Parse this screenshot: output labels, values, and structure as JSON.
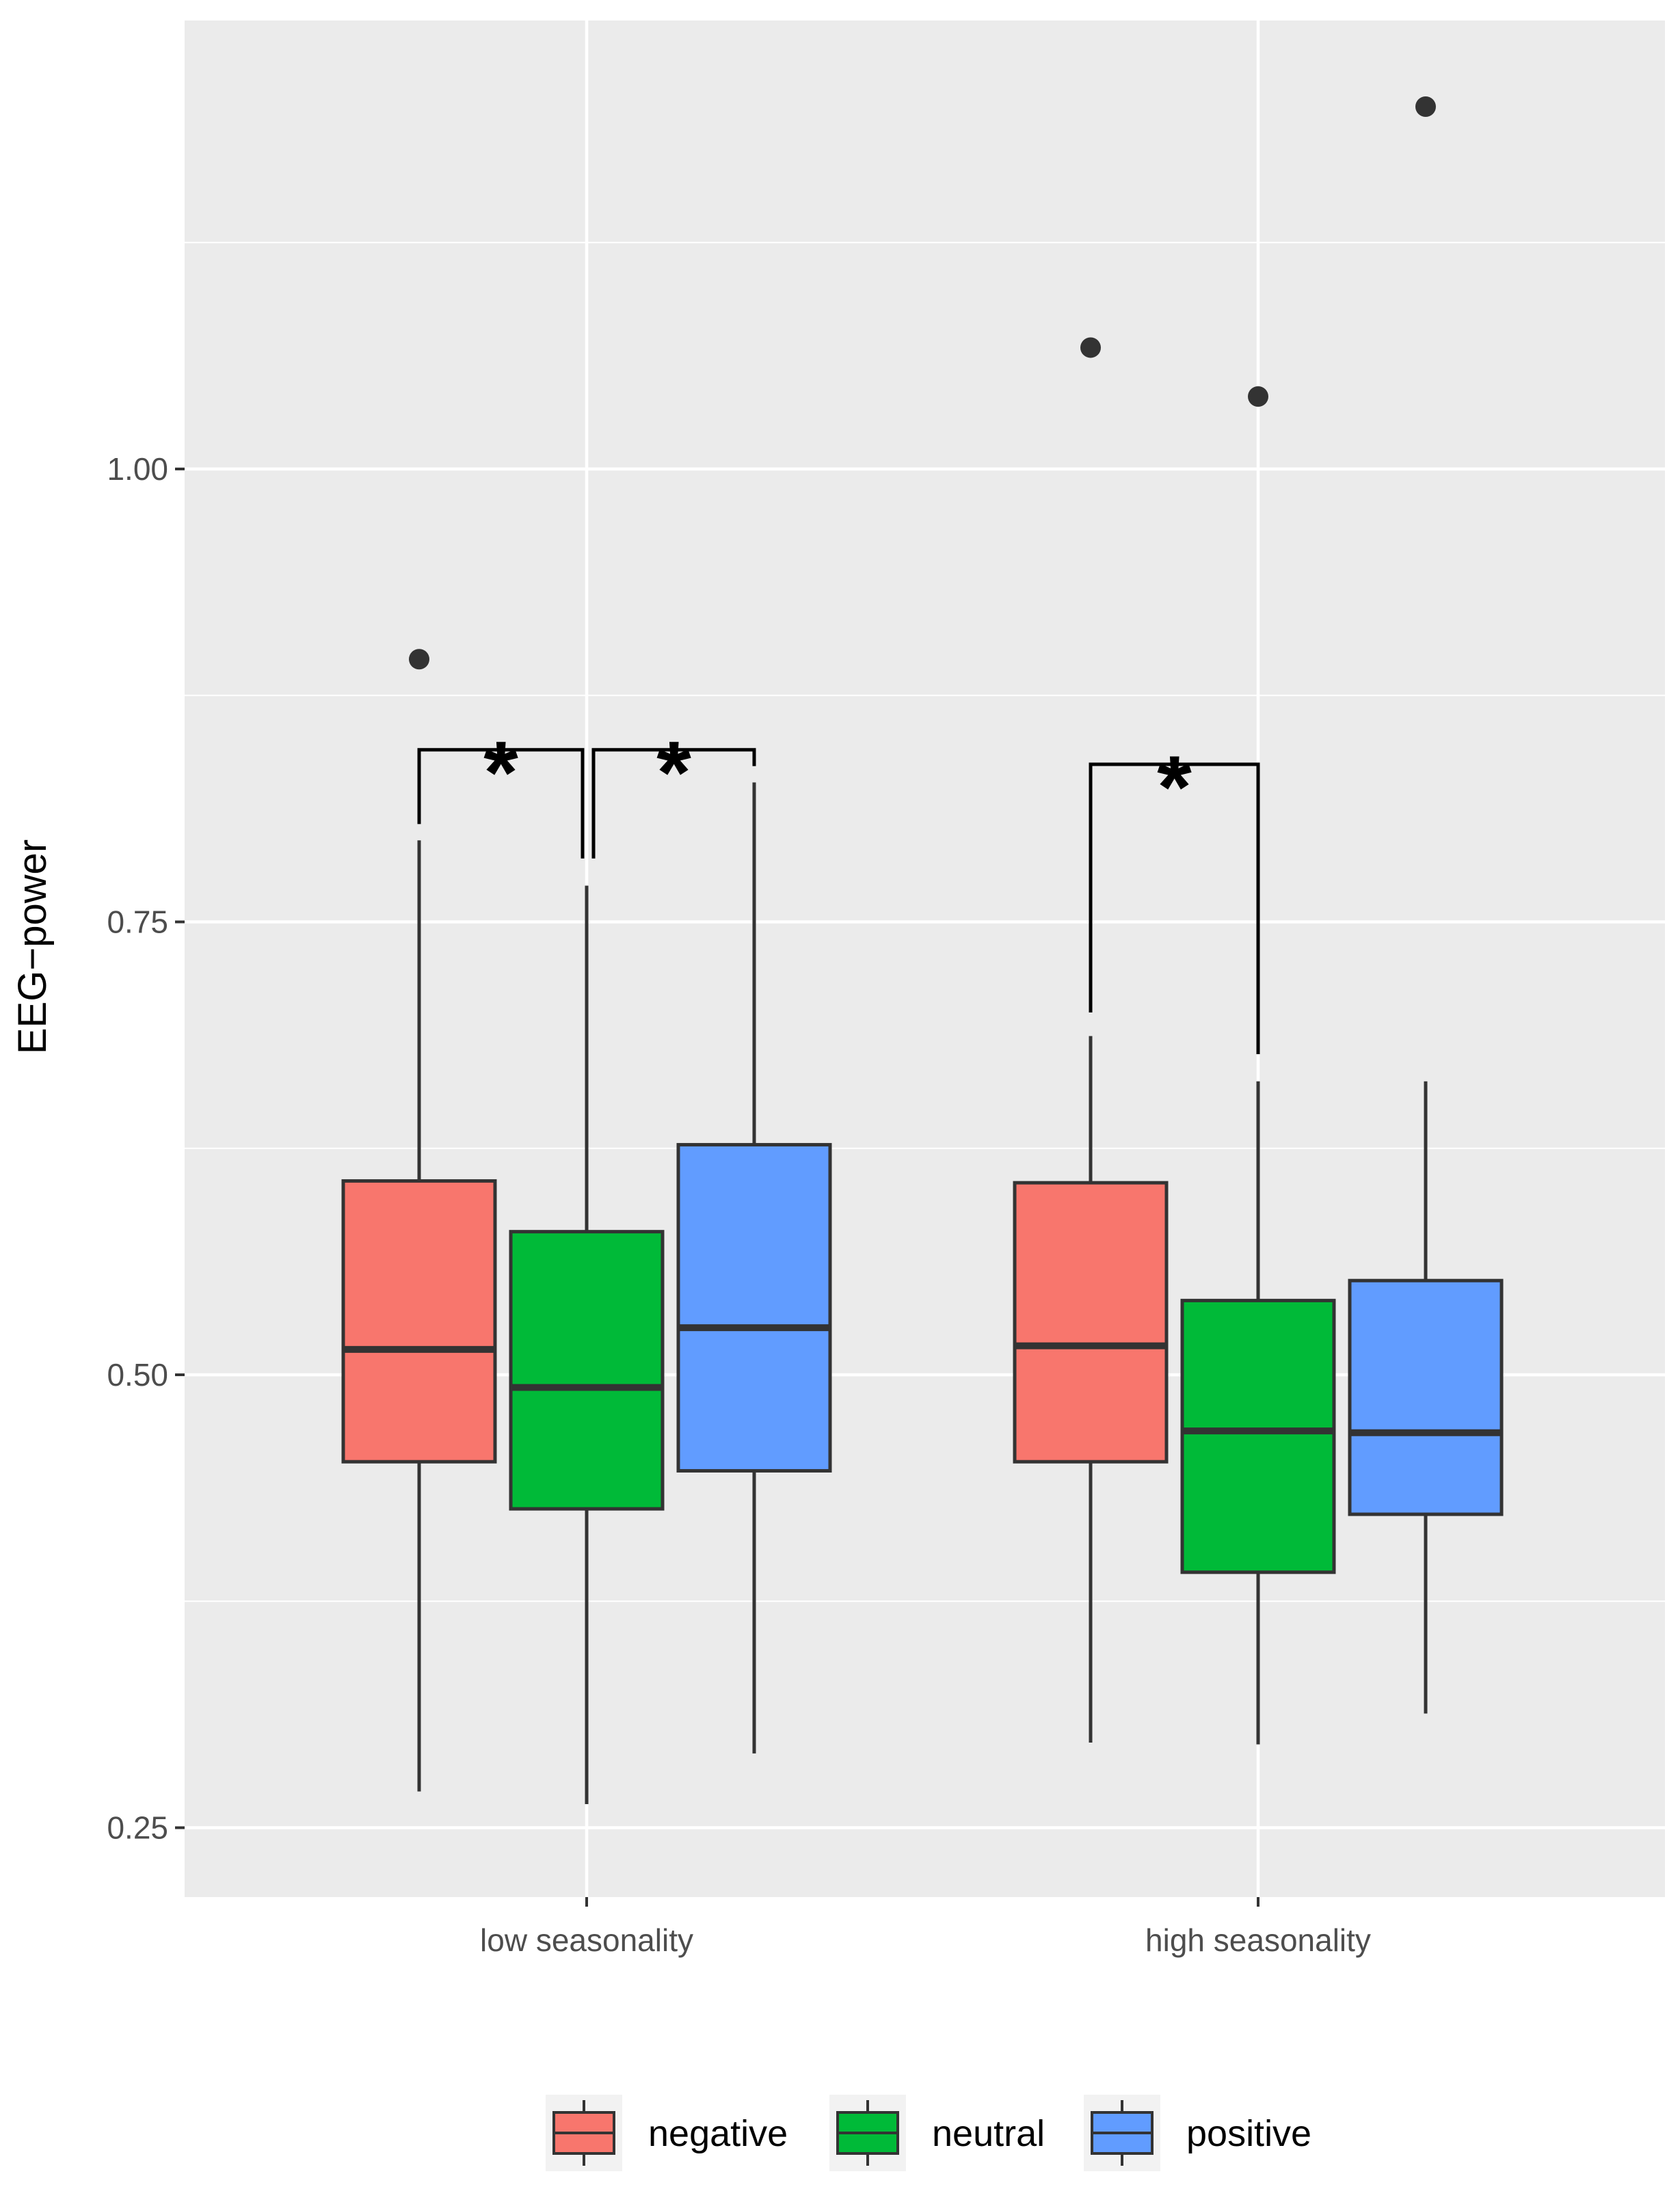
{
  "chart_data": {
    "type": "box",
    "title": "",
    "xlabel": "",
    "ylabel": "EEG−power",
    "ylim": [
      0.215,
      1.26
    ],
    "yticks": [
      0.25,
      0.5,
      0.75,
      1.0
    ],
    "ytick_labels": [
      "0.25",
      "0.50",
      "0.75",
      "1.00"
    ],
    "grid": true,
    "legend_position": "bottom",
    "categories": [
      "low seasonality",
      "high seasonality"
    ],
    "series": [
      {
        "name": "negative",
        "color": "#F8766D",
        "boxes": [
          {
            "category": "low seasonality",
            "whisker_low": 0.27,
            "q1": 0.452,
            "median": 0.514,
            "q3": 0.607,
            "whisker_high": 0.795,
            "outliers": [
              0.895
            ]
          },
          {
            "category": "high seasonality",
            "whisker_low": 0.297,
            "q1": 0.452,
            "median": 0.516,
            "q3": 0.606,
            "whisker_high": 0.687,
            "outliers": [
              1.067
            ]
          }
        ]
      },
      {
        "name": "neutral",
        "color": "#00BA38",
        "boxes": [
          {
            "category": "low seasonality",
            "whisker_low": 0.263,
            "q1": 0.426,
            "median": 0.493,
            "q3": 0.579,
            "whisker_high": 0.77,
            "outliers": []
          },
          {
            "category": "high seasonality",
            "whisker_low": 0.296,
            "q1": 0.391,
            "median": 0.469,
            "q3": 0.541,
            "whisker_high": 0.662,
            "outliers": [
              1.04
            ]
          }
        ]
      },
      {
        "name": "positive",
        "color": "#619CFF",
        "boxes": [
          {
            "category": "low seasonality",
            "whisker_low": 0.291,
            "q1": 0.447,
            "median": 0.526,
            "q3": 0.627,
            "whisker_high": 0.827,
            "outliers": []
          },
          {
            "category": "high seasonality",
            "whisker_low": 0.313,
            "q1": 0.423,
            "median": 0.468,
            "q3": 0.552,
            "whisker_high": 0.662,
            "outliers": [
              1.2
            ]
          }
        ]
      }
    ],
    "significance": [
      {
        "category": "low seasonality",
        "from": "negative",
        "to": "neutral",
        "label": "*",
        "bracket_y": 0.845,
        "left_end": 0.804,
        "right_end": 0.785
      },
      {
        "category": "low seasonality",
        "from": "neutral",
        "to": "positive",
        "label": "*",
        "bracket_y": 0.845,
        "left_end": 0.785,
        "right_end": 0.836
      },
      {
        "category": "high seasonality",
        "from": "negative",
        "to": "neutral",
        "label": "*",
        "bracket_y": 0.837,
        "left_end": 0.7,
        "right_end": 0.677
      }
    ]
  },
  "colors": {
    "panel": "#EBEBEB",
    "grid_major": "#FFFFFF",
    "box_outline": "#333333"
  }
}
